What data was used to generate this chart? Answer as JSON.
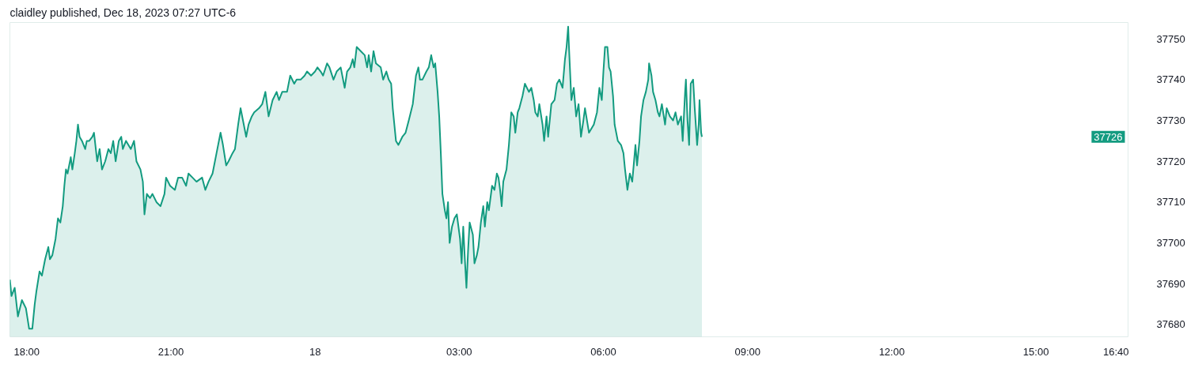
{
  "chart_data": {
    "type": "area",
    "title": "claidley published, Dec 18, 2023 07:27 UTC-6",
    "x": [
      "2023-12-17T17:39",
      "2023-12-17T17:41",
      "2023-12-17T17:45",
      "2023-12-17T17:49",
      "2023-12-17T17:54",
      "2023-12-17T17:59",
      "2023-12-17T18:03",
      "2023-12-17T18:07",
      "2023-12-17T18:10",
      "2023-12-17T18:12",
      "2023-12-17T18:16",
      "2023-12-17T18:19",
      "2023-12-17T18:23",
      "2023-12-17T18:27",
      "2023-12-17T18:29",
      "2023-12-17T18:32",
      "2023-12-17T18:36",
      "2023-12-17T18:39",
      "2023-12-17T18:42",
      "2023-12-17T18:45",
      "2023-12-17T18:47",
      "2023-12-17T18:49",
      "2023-12-17T18:51",
      "2023-12-17T18:53",
      "2023-12-17T18:55",
      "2023-12-17T18:57",
      "2023-12-17T19:00",
      "2023-12-17T19:02",
      "2023-12-17T19:04",
      "2023-12-17T19:06",
      "2023-12-17T19:09",
      "2023-12-17T19:13",
      "2023-12-17T19:15",
      "2023-12-17T19:18",
      "2023-12-17T19:22",
      "2023-12-17T19:24",
      "2023-12-17T19:28",
      "2023-12-17T19:31",
      "2023-12-17T19:34",
      "2023-12-17T19:38",
      "2023-12-17T19:42",
      "2023-12-17T19:45",
      "2023-12-17T19:48",
      "2023-12-17T19:51",
      "2023-12-17T19:55",
      "2023-12-17T19:58",
      "2023-12-17T20:00",
      "2023-12-17T20:04",
      "2023-12-17T20:10",
      "2023-12-17T20:14",
      "2023-12-17T20:17",
      "2023-12-17T20:22",
      "2023-12-17T20:25",
      "2023-12-17T20:27",
      "2023-12-17T20:30",
      "2023-12-17T20:34",
      "2023-12-17T20:37",
      "2023-12-17T20:42",
      "2023-12-17T20:47",
      "2023-12-17T20:52",
      "2023-12-17T20:54",
      "2023-12-17T20:59",
      "2023-12-17T21:05",
      "2023-12-17T21:09",
      "2023-12-17T21:14",
      "2023-12-17T21:19",
      "2023-12-17T21:22",
      "2023-12-17T21:27",
      "2023-12-17T21:32",
      "2023-12-17T21:39",
      "2023-12-17T21:43",
      "2023-12-17T21:47",
      "2023-12-17T21:52",
      "2023-12-17T21:57",
      "2023-12-17T22:00",
      "2023-12-17T22:02",
      "2023-12-17T22:05",
      "2023-12-17T22:09",
      "2023-12-17T22:12",
      "2023-12-17T22:17",
      "2023-12-17T22:20",
      "2023-12-17T22:24",
      "2023-12-17T22:27",
      "2023-12-17T22:30",
      "2023-12-17T22:34",
      "2023-12-17T22:37",
      "2023-12-17T22:41",
      "2023-12-17T22:44",
      "2023-12-17T22:50",
      "2023-12-17T22:54",
      "2023-12-17T22:58",
      "2023-12-17T23:02",
      "2023-12-17T23:07",
      "2023-12-17T23:12",
      "2023-12-17T23:15",
      "2023-12-17T23:19",
      "2023-12-17T23:25",
      "2023-12-17T23:29",
      "2023-12-17T23:34",
      "2023-12-17T23:37",
      "2023-12-17T23:42",
      "2023-12-17T23:47",
      "2023-12-17T23:50",
      "2023-12-17T23:55",
      "2023-12-18T00:00",
      "2023-12-18T00:03",
      "2023-12-18T00:07",
      "2023-12-18T00:10",
      "2023-12-18T00:15",
      "2023-12-18T00:18",
      "2023-12-18T00:23",
      "2023-12-18T00:27",
      "2023-12-18T00:32",
      "2023-12-18T00:37",
      "2023-12-18T00:40",
      "2023-12-18T00:44",
      "2023-12-18T00:47",
      "2023-12-18T00:49",
      "2023-12-18T00:52",
      "2023-12-18T00:57",
      "2023-12-18T01:02",
      "2023-12-18T01:05",
      "2023-12-18T01:07",
      "2023-12-18T01:10",
      "2023-12-18T01:13",
      "2023-12-18T01:16",
      "2023-12-18T01:22",
      "2023-12-18T01:25",
      "2023-12-18T01:29",
      "2023-12-18T01:32",
      "2023-12-18T01:35",
      "2023-12-18T01:37",
      "2023-12-18T01:41",
      "2023-12-18T01:44",
      "2023-12-18T01:49",
      "2023-12-18T01:53",
      "2023-12-18T01:57",
      "2023-12-18T02:02",
      "2023-12-18T02:06",
      "2023-12-18T02:09",
      "2023-12-18T02:11",
      "2023-12-18T02:14",
      "2023-12-18T02:19",
      "2023-12-18T02:22",
      "2023-12-18T02:25",
      "2023-12-18T02:28",
      "2023-12-18T02:30",
      "2023-12-18T02:33",
      "2023-12-18T02:35",
      "2023-12-18T02:37",
      "2023-12-18T02:39",
      "2023-12-18T02:42",
      "2023-12-18T02:44",
      "2023-12-18T02:46",
      "2023-12-18T02:48",
      "2023-12-18T02:51",
      "2023-12-18T02:54",
      "2023-12-18T02:57",
      "2023-12-18T03:01",
      "2023-12-18T03:03",
      "2023-12-18T03:05",
      "2023-12-18T03:07",
      "2023-12-18T03:09",
      "2023-12-18T03:11",
      "2023-12-18T03:13",
      "2023-12-18T03:17",
      "2023-12-18T03:19",
      "2023-12-18T03:22",
      "2023-12-18T03:24",
      "2023-12-18T03:27",
      "2023-12-18T03:30",
      "2023-12-18T03:32",
      "2023-12-18T03:35",
      "2023-12-18T03:37",
      "2023-12-18T03:41",
      "2023-12-18T03:44",
      "2023-12-18T03:47",
      "2023-12-18T03:49",
      "2023-12-18T03:51",
      "2023-12-18T03:53",
      "2023-12-18T03:55",
      "2023-12-18T03:59",
      "2023-12-18T04:02",
      "2023-12-18T04:05",
      "2023-12-18T04:08",
      "2023-12-18T04:10",
      "2023-12-18T04:13",
      "2023-12-18T04:15",
      "2023-12-18T04:19",
      "2023-12-18T04:22",
      "2023-12-18T04:27",
      "2023-12-18T04:30",
      "2023-12-18T04:33",
      "2023-12-18T04:35",
      "2023-12-18T04:38",
      "2023-12-18T04:40",
      "2023-12-18T04:44",
      "2023-12-18T04:46",
      "2023-12-18T04:49",
      "2023-12-18T04:51",
      "2023-12-18T04:55",
      "2023-12-18T04:59",
      "2023-12-18T05:02",
      "2023-12-18T05:05",
      "2023-12-18T05:09",
      "2023-12-18T05:12",
      "2023-12-18T05:14",
      "2023-12-18T05:16",
      "2023-12-18T05:17",
      "2023-12-18T05:20",
      "2023-12-18T05:23",
      "2023-12-18T05:26",
      "2023-12-18T05:29",
      "2023-12-18T05:32",
      "2023-12-18T05:35",
      "2023-12-18T05:37",
      "2023-12-18T05:42",
      "2023-12-18T05:48",
      "2023-12-18T05:52",
      "2023-12-18T05:55",
      "2023-12-18T05:58",
      "2023-12-18T06:00",
      "2023-12-18T06:02",
      "2023-12-18T06:05",
      "2023-12-18T06:07",
      "2023-12-18T06:09",
      "2023-12-18T06:12",
      "2023-12-18T06:14",
      "2023-12-18T06:18",
      "2023-12-18T06:22",
      "2023-12-18T06:25",
      "2023-12-18T06:27",
      "2023-12-18T06:30",
      "2023-12-18T06:33",
      "2023-12-18T06:36",
      "2023-12-18T06:40",
      "2023-12-18T06:42",
      "2023-12-18T06:45",
      "2023-12-18T06:47",
      "2023-12-18T06:50",
      "2023-12-18T06:53",
      "2023-12-18T06:56",
      "2023-12-18T06:57",
      "2023-12-18T07:00",
      "2023-12-18T07:02",
      "2023-12-18T07:05",
      "2023-12-18T07:08",
      "2023-12-18T07:10",
      "2023-12-18T07:13",
      "2023-12-18T07:17",
      "2023-12-18T07:19",
      "2023-12-18T07:23",
      "2023-12-18T07:27",
      "2023-12-18T07:30",
      "2023-12-18T07:33",
      "2023-12-18T07:37",
      "2023-12-18T07:39",
      "2023-12-18T07:42",
      "2023-12-18T07:43",
      "2023-12-18T07:45",
      "2023-12-18T07:47",
      "2023-12-18T07:49",
      "2023-12-18T07:52",
      "2023-12-18T07:54",
      "2023-12-18T07:57",
      "2023-12-18T07:59",
      "2023-12-18T08:00",
      "2023-12-18T08:02",
      "2023-12-18T08:03"
    ],
    "series": [
      {
        "color": "#139b80",
        "values": [
          37691,
          37687,
          37689,
          37682,
          37686,
          37684,
          37679,
          37679,
          37685,
          37688,
          37693,
          37692,
          37696,
          37699,
          37696,
          37697,
          37701,
          37706,
          37705,
          37709,
          37714,
          37718,
          37717,
          37719,
          37721,
          37718,
          37722,
          37725,
          37729,
          37726,
          37725,
          37723,
          37725,
          37725,
          37726,
          37727,
          37720,
          37723,
          37718,
          37720,
          37723,
          37722,
          37725,
          37720,
          37725,
          37726,
          37723,
          37725,
          37723,
          37725,
          37720,
          37718,
          37715,
          37707,
          37712,
          37711,
          37712,
          37710,
          37709,
          37712,
          37716,
          37714,
          37713,
          37716,
          37716,
          37714,
          37717,
          37716,
          37715,
          37716,
          37713,
          37715,
          37717,
          37722,
          37725,
          37727,
          37724,
          37719,
          37720,
          37722,
          37723,
          37729,
          37733,
          37730,
          37726,
          37729,
          37731,
          37732,
          37733,
          37734,
          37737,
          37731,
          37735,
          37737,
          37735,
          37737,
          37737,
          37741,
          37739,
          37740,
          37740,
          37741,
          37742,
          37741,
          37742,
          37743,
          37742,
          37741,
          37744,
          37743,
          37740,
          37742,
          37743,
          37738,
          37742,
          37743,
          37745,
          37743,
          37748,
          37747,
          37746,
          37743,
          37746,
          37742,
          37747,
          37744,
          37743,
          37740,
          37742,
          37740,
          37739,
          37733,
          37725,
          37724,
          37726,
          37727,
          37730,
          37734,
          37741,
          37743,
          37740,
          37740,
          37742,
          37743,
          37746,
          37743,
          37744,
          37737,
          37731,
          37722,
          37712,
          37708,
          37706,
          37710,
          37700,
          37704,
          37706,
          37707,
          37701,
          37695,
          37704,
          37696,
          37689,
          37698,
          37705,
          37702,
          37695,
          37697,
          37699,
          37705,
          37709,
          37704,
          37710,
          37708,
          37714,
          37713,
          37717,
          37716,
          37713,
          37709,
          37715,
          37718,
          37724,
          37732,
          37731,
          37727,
          37732,
          37733,
          37736,
          37739,
          37737,
          37738,
          37735,
          37732,
          37731,
          37734,
          37729,
          37725,
          37731,
          37726,
          37734,
          37735,
          37739,
          37740,
          37738,
          37745,
          37748,
          37753,
          37748,
          37735,
          37738,
          37731,
          37734,
          37726,
          37730,
          37733,
          37727,
          37729,
          37732,
          37738,
          37735,
          37742,
          37748,
          37748,
          37743,
          37742,
          37736,
          37729,
          37725,
          37724,
          37722,
          37718,
          37713,
          37717,
          37715,
          37724,
          37719,
          37725,
          37731,
          37735,
          37737,
          37740,
          37744,
          37741,
          37737,
          37735,
          37732,
          37731,
          37734,
          37729,
          37733,
          37731,
          37730,
          37732,
          37729,
          37731,
          37725,
          37737,
          37740,
          37730,
          37724,
          37739,
          37740,
          37733,
          37724,
          37729,
          37735,
          37727,
          37726
        ]
      }
    ],
    "xlim": [
      "2023-12-17T17:39",
      "2023-12-18T16:55"
    ],
    "xticks": [
      {
        "value": "2023-12-17T18:00",
        "label": "18:00"
      },
      {
        "value": "2023-12-17T21:00",
        "label": "21:00"
      },
      {
        "value": "2023-12-18T00:00",
        "label": "18"
      },
      {
        "value": "2023-12-18T03:00",
        "label": "03:00"
      },
      {
        "value": "2023-12-18T06:00",
        "label": "06:00"
      },
      {
        "value": "2023-12-18T09:00",
        "label": "09:00"
      },
      {
        "value": "2023-12-18T12:00",
        "label": "12:00"
      },
      {
        "value": "2023-12-18T15:00",
        "label": "15:00"
      },
      {
        "value": "2023-12-18T16:40",
        "label": "16:40"
      }
    ],
    "ylim": [
      37677,
      37754
    ],
    "yticks": [
      37680,
      37690,
      37700,
      37710,
      37720,
      37730,
      37740,
      37750
    ],
    "annotations": [
      {
        "text": "37726",
        "y": 37726
      }
    ]
  }
}
